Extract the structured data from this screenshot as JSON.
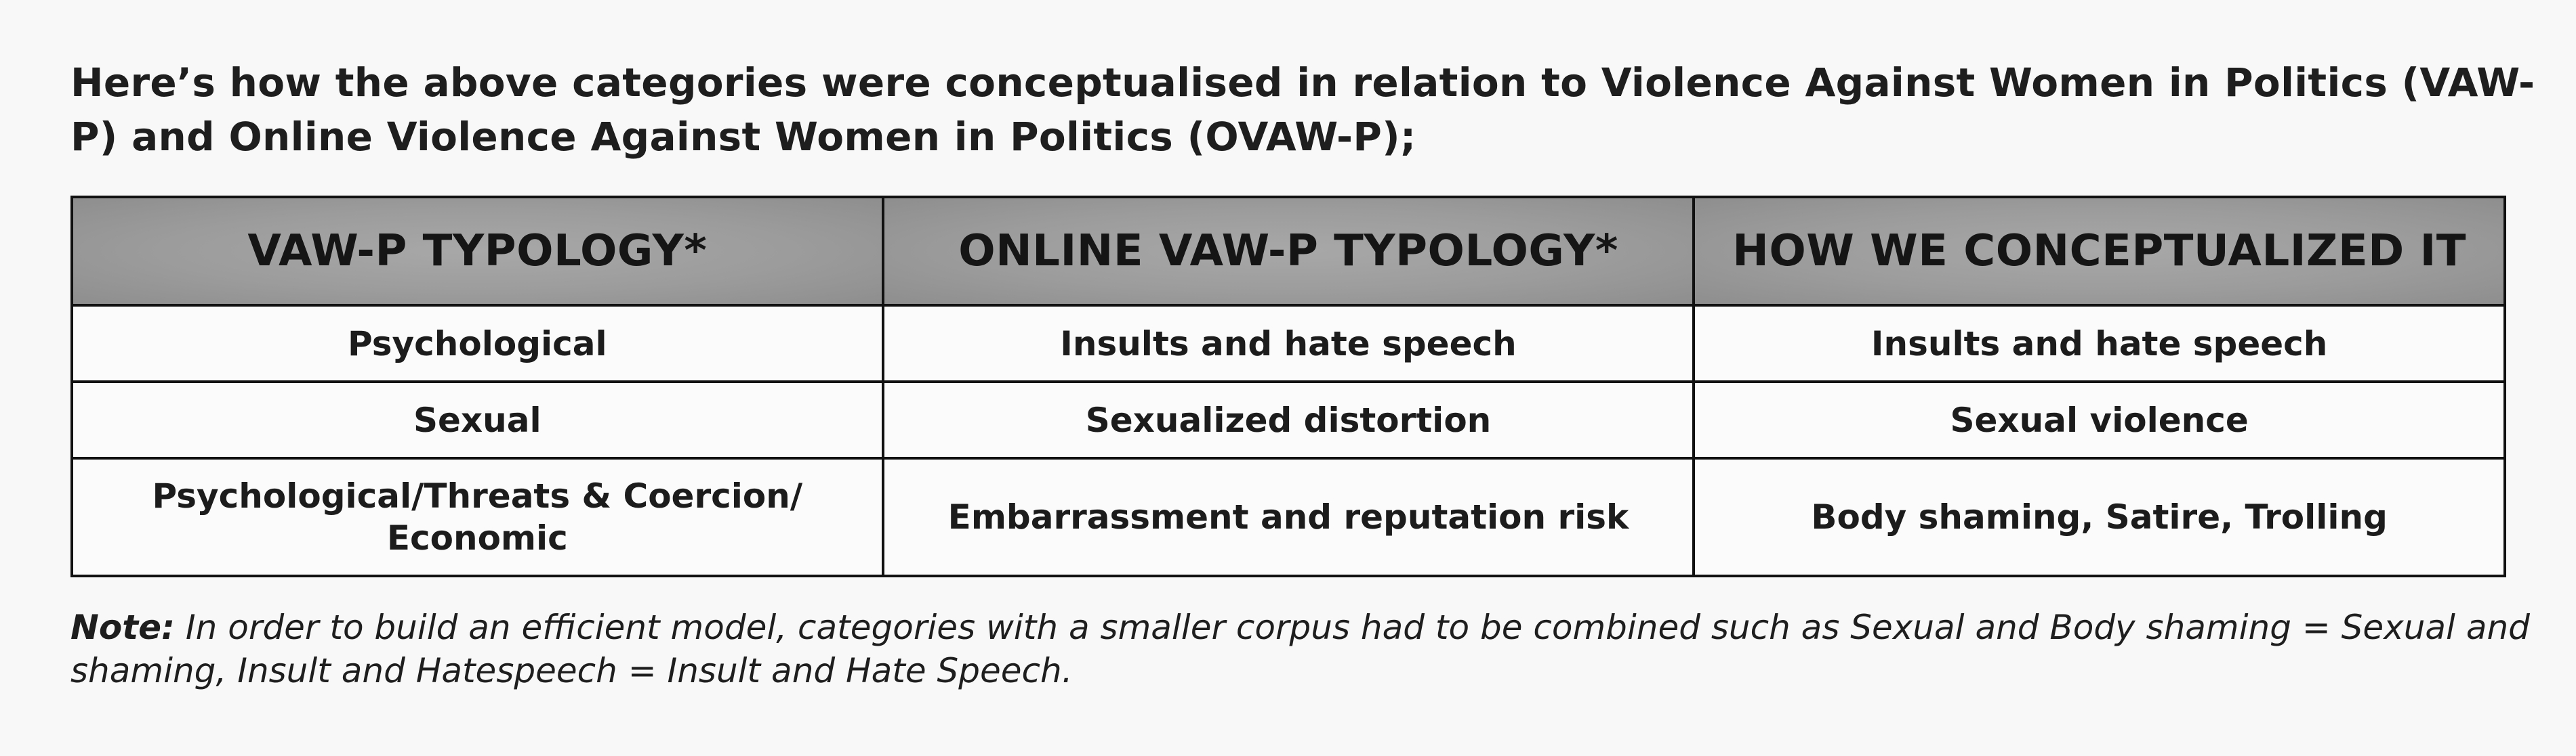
{
  "intro_text": "Here’s how the above categories were conceptualised in relation to Violence Against Women in Politics (VAW-P) and Online Violence Against Women in Politics (OVAW-P);",
  "table": {
    "headers": [
      "VAW-P TYPOLOGY*",
      "ONLINE VAW-P TYPOLOGY*",
      "HOW WE CONCEPTUALIZED IT"
    ],
    "rows": [
      [
        "Psychological",
        "Insults and hate speech",
        "Insults and hate speech"
      ],
      [
        "Sexual",
        "Sexualized distortion",
        "Sexual violence"
      ],
      [
        "Psychological/Threats & Coercion/ Economic",
        "Embarrassment and reputation risk",
        "Body shaming, Satire, Trolling"
      ]
    ]
  },
  "note": {
    "label": "Note:",
    "text": " In order to build an efficient model, categories with a smaller corpus had to be combined such as Sexual and Body shaming = Sexual and shaming, Insult and Hatespeech = Insult and Hate Speech."
  },
  "colors": {
    "page_background": "#f8f8f8",
    "header_fill": "#9c9c9c",
    "border": "#111111",
    "text": "#1e1e1e"
  }
}
